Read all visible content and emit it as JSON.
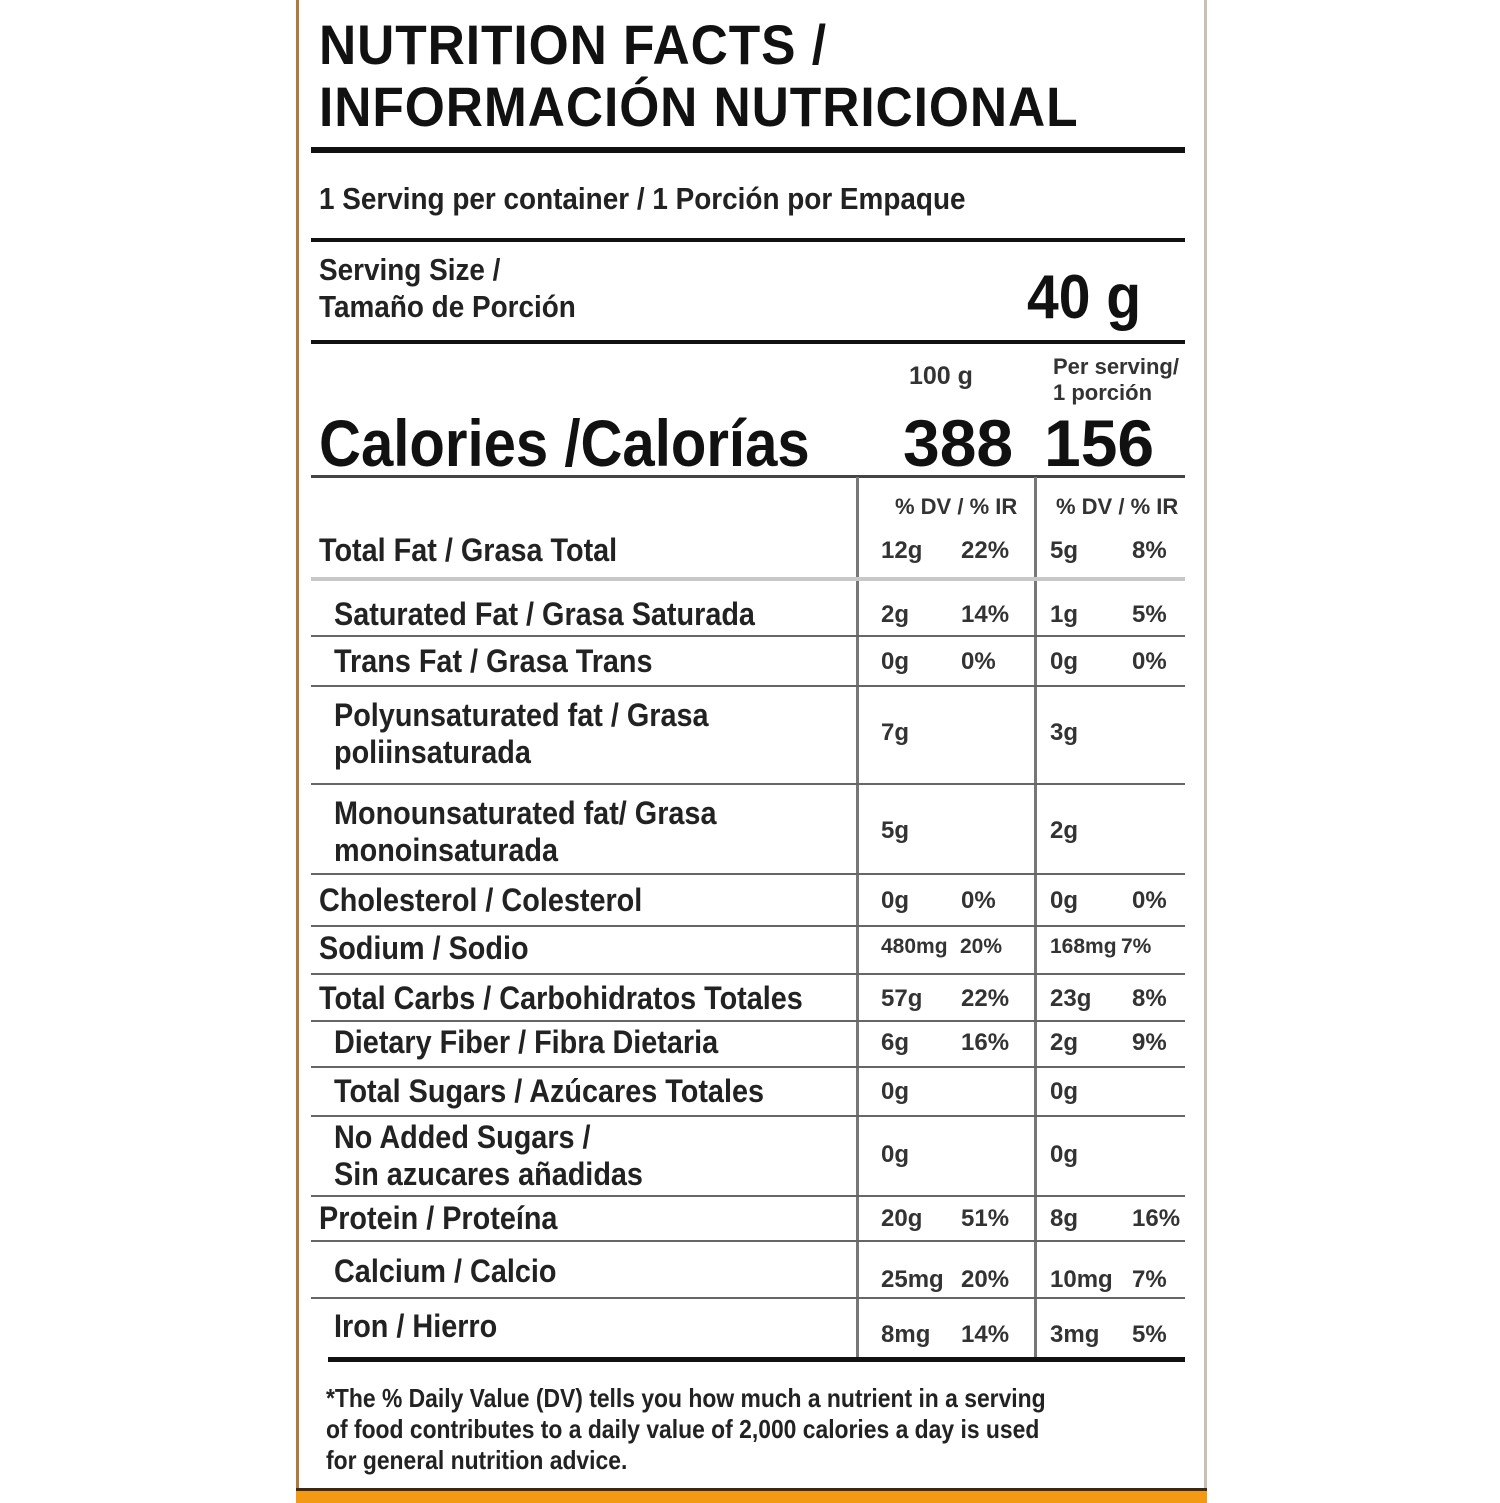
{
  "title": {
    "line1": "NUTRITION FACTS /",
    "line2": "INFORMACIÓN NUTRICIONAL"
  },
  "servings_per_container": "1 Serving per container / 1 Porción por Empaque",
  "serving_size": {
    "label_line1": "Serving Size /",
    "label_line2": "Tamaño de Porción",
    "value": "40 g"
  },
  "calories": {
    "label": "Calories /Calorías",
    "col_100g_header": "100 g",
    "col_serving_header_line1": "Per serving/",
    "col_serving_header_line2": "1 porción",
    "per_100g": "388",
    "per_serving": "156"
  },
  "dv_header": "% DV / % IR",
  "nutrients": [
    {
      "label": [
        "Total Fat / Grasa Total"
      ],
      "indent": false,
      "g100": "12g",
      "pct100": "22%",
      "gserv": "5g",
      "pctserv": "8%"
    },
    {
      "label": [
        "Saturated Fat / Grasa Saturada"
      ],
      "indent": true,
      "g100": "2g",
      "pct100": "14%",
      "gserv": "1g",
      "pctserv": "5%"
    },
    {
      "label": [
        "Trans Fat / Grasa Trans"
      ],
      "indent": true,
      "g100": "0g",
      "pct100": "0%",
      "gserv": "0g",
      "pctserv": "0%"
    },
    {
      "label": [
        "Polyunsaturated fat / Grasa",
        "poliinsaturada"
      ],
      "indent": true,
      "g100": "7g",
      "pct100": "",
      "gserv": "3g",
      "pctserv": ""
    },
    {
      "label": [
        "Monounsaturated fat/ Grasa",
        "monoinsaturada"
      ],
      "indent": true,
      "g100": "5g",
      "pct100": "",
      "gserv": "2g",
      "pctserv": ""
    },
    {
      "label": [
        "Cholesterol / Colesterol"
      ],
      "indent": false,
      "g100": "0g",
      "pct100": "0%",
      "gserv": "0g",
      "pctserv": "0%"
    },
    {
      "label": [
        "Sodium / Sodio"
      ],
      "indent": false,
      "g100": "480mg",
      "pct100": "20%",
      "gserv": "168mg",
      "pctserv": "7%"
    },
    {
      "label": [
        "Total Carbs / Carbohidratos Totales"
      ],
      "indent": false,
      "g100": "57g",
      "pct100": "22%",
      "gserv": "23g",
      "pctserv": "8%"
    },
    {
      "label": [
        "Dietary Fiber / Fibra Dietaria"
      ],
      "indent": true,
      "g100": "6g",
      "pct100": "16%",
      "gserv": "2g",
      "pctserv": "9%"
    },
    {
      "label": [
        "Total Sugars / Azúcares Totales"
      ],
      "indent": true,
      "g100": "0g",
      "pct100": "",
      "gserv": "0g",
      "pctserv": ""
    },
    {
      "label": [
        "No Added Sugars /",
        "Sin azucares añadidas"
      ],
      "indent": true,
      "g100": "0g",
      "pct100": "",
      "gserv": "0g",
      "pctserv": ""
    },
    {
      "label": [
        "Protein / Proteína"
      ],
      "indent": false,
      "g100": "20g",
      "pct100": "51%",
      "gserv": "8g",
      "pctserv": "16%"
    },
    {
      "label": [
        "Calcium / Calcio"
      ],
      "indent": true,
      "g100": "25mg",
      "pct100": "20%",
      "gserv": "10mg",
      "pctserv": "7%"
    },
    {
      "label": [
        "Iron / Hierro"
      ],
      "indent": true,
      "g100": "8mg",
      "pct100": "14%",
      "gserv": "3mg",
      "pctserv": "5%"
    }
  ],
  "footnote": [
    "*The % Daily Value (DV) tells you how much a nutrient in a serving",
    "of food contributes to a daily value of 2,000 calories a day is used",
    "for general nutrition advice."
  ],
  "colors": {
    "border_accent": "#f39a12",
    "text": "#111111"
  }
}
